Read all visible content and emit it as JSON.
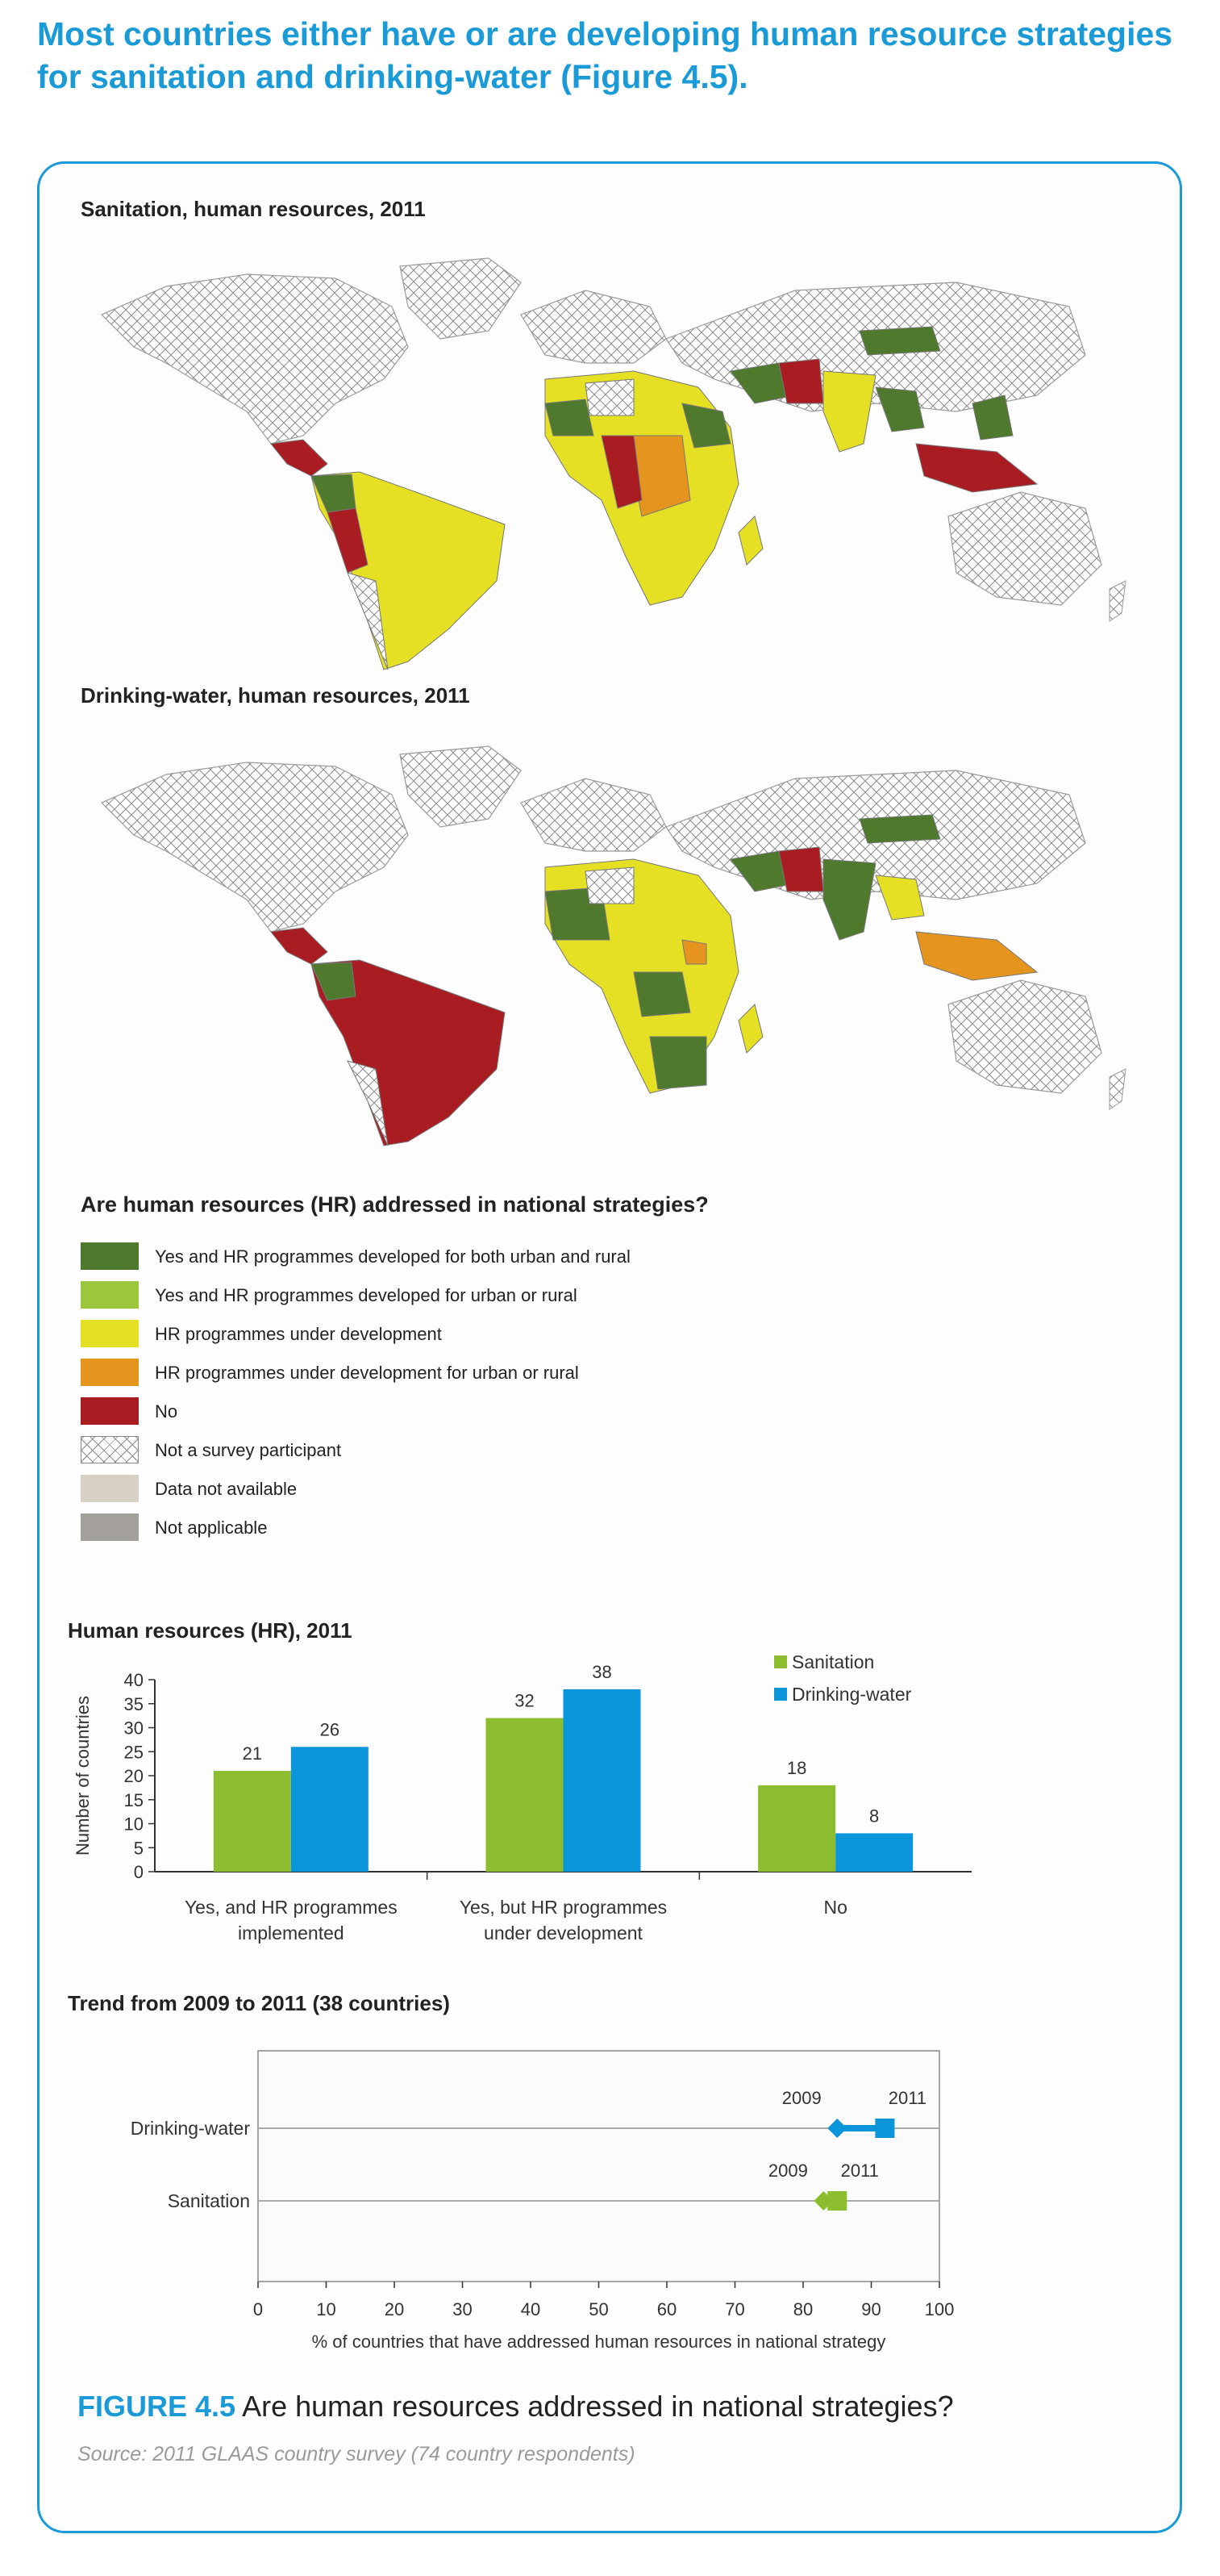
{
  "headline": "Most countries either have or are developing human resource strategies for sanitation and drinking-water (Figure 4.5).",
  "maps": {
    "sanitation_title": "Sanitation, human resources, 2011",
    "drinking_title": "Drinking-water, human resources, 2011"
  },
  "legend": {
    "title": "Are human resources (HR) addressed in national strategies?",
    "items": [
      {
        "label": "Yes and HR programmes developed for both urban and rural",
        "color": "#4f7a2e",
        "pattern": "solid"
      },
      {
        "label": "Yes and HR programmes developed for urban or rural",
        "color": "#9cc63b",
        "pattern": "solid"
      },
      {
        "label": "HR programmes under development",
        "color": "#e5e024",
        "pattern": "solid"
      },
      {
        "label": "HR programmes under development for urban or rural",
        "color": "#e5941e",
        "pattern": "solid"
      },
      {
        "label": "No",
        "color": "#a81c22",
        "pattern": "solid"
      },
      {
        "label": "Not a survey participant",
        "color": "#ffffff",
        "pattern": "crosshatch"
      },
      {
        "label": "Data not available",
        "color": "#d6d1c4",
        "pattern": "solid"
      },
      {
        "label": "Not applicable",
        "color": "#a3a09c",
        "pattern": "solid"
      }
    ]
  },
  "chart_data": [
    {
      "type": "bar",
      "title": "Human resources (HR), 2011",
      "categories": [
        "Yes, and HR programmes implemented",
        "Yes, but HR programmes under development",
        "No"
      ],
      "category_lines": [
        [
          "Yes, and HR programmes",
          "implemented"
        ],
        [
          "Yes, but HR programmes",
          "under development"
        ],
        [
          "No"
        ]
      ],
      "series": [
        {
          "name": "Sanitation",
          "values": [
            21,
            32,
            18
          ],
          "color": "#8cbd2e"
        },
        {
          "name": "Drinking-water",
          "values": [
            26,
            38,
            8
          ],
          "color": "#0b95db"
        }
      ],
      "ylabel": "Number of countries",
      "ylim": [
        0,
        40
      ],
      "yticks": [
        0,
        5,
        10,
        15,
        20,
        25,
        30,
        35,
        40
      ],
      "legend_position": "top-right"
    },
    {
      "type": "scatter",
      "title": "Trend from 2009 to 2011 (38 countries)",
      "categories": [
        "Drinking-water",
        "Sanitation"
      ],
      "series": [
        {
          "name": "Drinking-water",
          "points": [
            {
              "year": "2009",
              "x": 85,
              "marker": "diamond"
            },
            {
              "year": "2011",
              "x": 92,
              "marker": "square"
            }
          ],
          "color": "#0b95db"
        },
        {
          "name": "Sanitation",
          "points": [
            {
              "year": "2009",
              "x": 83,
              "marker": "diamond"
            },
            {
              "year": "2011",
              "x": 85,
              "marker": "square"
            }
          ],
          "color": "#8cbd2e"
        }
      ],
      "xlabel": "% of countries that have addressed human resources in national strategy",
      "xlim": [
        0,
        100
      ],
      "xticks": [
        0,
        10,
        20,
        30,
        40,
        50,
        60,
        70,
        80,
        90,
        100
      ]
    }
  ],
  "figure": {
    "label": "FIGURE 4.5",
    "caption": "Are human resources addressed in national strategies?",
    "source": "Source: 2011 GLAAS country survey (74 country respondents)"
  }
}
